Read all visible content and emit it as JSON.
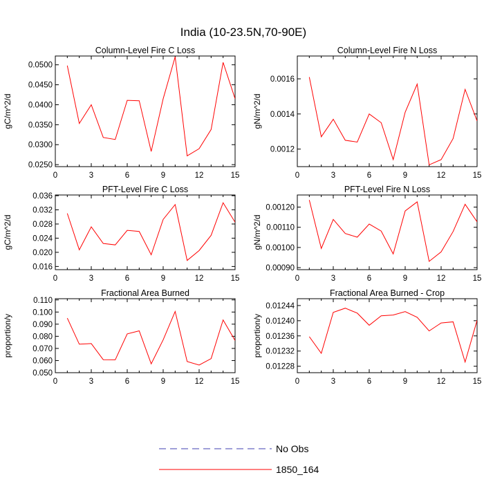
{
  "page": {
    "title": "India (10-23.5N,70-90E)"
  },
  "chart_data": [
    {
      "type": "line",
      "title": "Column-Level Fire C Loss",
      "xlabel": "",
      "ylabel": "gC/m^2/d",
      "xlim": [
        0,
        15
      ],
      "ylim": [
        0.0245,
        0.0522
      ],
      "xticks": [
        "0",
        "3",
        "6",
        "9",
        "12",
        "15"
      ],
      "yticks": [
        "0.0250",
        "0.0300",
        "0.0350",
        "0.0400",
        "0.0450",
        "0.0500"
      ],
      "x": [
        1,
        2,
        3,
        4,
        5,
        6,
        7,
        8,
        9,
        10,
        11,
        12,
        13,
        14,
        15
      ],
      "series": [
        {
          "name": "1850_164",
          "color": "#ff0000",
          "values": [
            0.0498,
            0.0353,
            0.04,
            0.0318,
            0.0313,
            0.0411,
            0.041,
            0.0283,
            0.0415,
            0.052,
            0.0272,
            0.029,
            0.0338,
            0.0506,
            0.0415
          ]
        }
      ]
    },
    {
      "type": "line",
      "title": "Column-Level Fire N Loss",
      "xlabel": "",
      "ylabel": "gN/m^2/d",
      "xlim": [
        0,
        15
      ],
      "ylim": [
        0.0011,
        0.00173
      ],
      "xticks": [
        "0",
        "3",
        "6",
        "9",
        "12",
        "15"
      ],
      "yticks": [
        "0.0012",
        "0.0014",
        "0.0016"
      ],
      "x": [
        1,
        2,
        3,
        4,
        5,
        6,
        7,
        8,
        9,
        10,
        11,
        12,
        13,
        14,
        15
      ],
      "series": [
        {
          "name": "1850_164",
          "color": "#ff0000",
          "values": [
            0.00161,
            0.00127,
            0.00137,
            0.00125,
            0.00124,
            0.0014,
            0.00135,
            0.00114,
            0.00141,
            0.00157,
            0.00111,
            0.00114,
            0.00126,
            0.00154,
            0.00136
          ]
        }
      ]
    },
    {
      "type": "line",
      "title": "PFT-Level Fire C Loss",
      "xlabel": "",
      "ylabel": "gC/m^2/d",
      "xlim": [
        0,
        15
      ],
      "ylim": [
        0.0151,
        0.0362
      ],
      "xticks": [
        "0",
        "3",
        "6",
        "9",
        "12",
        "15"
      ],
      "yticks": [
        "0.016",
        "0.020",
        "0.024",
        "0.028",
        "0.032",
        "0.036"
      ],
      "x": [
        1,
        2,
        3,
        4,
        5,
        6,
        7,
        8,
        9,
        10,
        11,
        12,
        13,
        14,
        15
      ],
      "series": [
        {
          "name": "1850_164",
          "color": "#ff0000",
          "values": [
            0.031,
            0.0207,
            0.0272,
            0.0225,
            0.0221,
            0.0262,
            0.0259,
            0.0193,
            0.0293,
            0.0335,
            0.0177,
            0.0205,
            0.0248,
            0.034,
            0.0285
          ]
        }
      ]
    },
    {
      "type": "line",
      "title": "PFT-Level Fire N Loss",
      "xlabel": "",
      "ylabel": "gN/m^2/d",
      "xlim": [
        0,
        15
      ],
      "ylim": [
        0.00089,
        0.00126
      ],
      "xticks": [
        "0",
        "3",
        "6",
        "9",
        "12",
        "15"
      ],
      "yticks": [
        "0.00090",
        "0.00100",
        "0.00110",
        "0.00120"
      ],
      "x": [
        1,
        2,
        3,
        4,
        5,
        6,
        7,
        8,
        9,
        10,
        11,
        12,
        13,
        14,
        15
      ],
      "series": [
        {
          "name": "1850_164",
          "color": "#ff0000",
          "values": [
            0.001235,
            0.000995,
            0.001139,
            0.001069,
            0.001051,
            0.001116,
            0.001081,
            0.000968,
            0.001181,
            0.001226,
            0.000931,
            0.000978,
            0.001079,
            0.001214,
            0.001127
          ]
        }
      ]
    },
    {
      "type": "line",
      "title": "Fractional Area Burned",
      "xlabel": "",
      "ylabel": "proportion/y",
      "xlim": [
        0,
        15
      ],
      "ylim": [
        0.05,
        0.111
      ],
      "xticks": [
        "0",
        "3",
        "6",
        "9",
        "12",
        "15"
      ],
      "yticks": [
        "0.050",
        "0.060",
        "0.070",
        "0.080",
        "0.090",
        "0.100",
        "0.110"
      ],
      "x": [
        1,
        2,
        3,
        4,
        5,
        6,
        7,
        8,
        9,
        10,
        11,
        12,
        13,
        14,
        15
      ],
      "series": [
        {
          "name": "1850_164",
          "color": "#ff0000",
          "values": [
            0.095,
            0.0735,
            0.074,
            0.0607,
            0.0606,
            0.082,
            0.0845,
            0.0573,
            0.0771,
            0.1005,
            0.0592,
            0.0563,
            0.0616,
            0.0935,
            0.0765
          ]
        }
      ]
    },
    {
      "type": "line",
      "title": "Fractional Area Burned - Crop",
      "xlabel": "",
      "ylabel": "proportion/y",
      "xlim": [
        0,
        15
      ],
      "ylim": [
        0.012263,
        0.012458
      ],
      "xticks": [
        "0",
        "3",
        "6",
        "9",
        "12",
        "15"
      ],
      "yticks": [
        "0.01228",
        "0.01232",
        "0.01236",
        "0.01240",
        "0.01244"
      ],
      "x": [
        1,
        2,
        3,
        4,
        5,
        6,
        7,
        8,
        9,
        10,
        11,
        12,
        13,
        14,
        15
      ],
      "series": [
        {
          "name": "1850_164",
          "color": "#ff0000",
          "values": [
            0.012358,
            0.012314,
            0.012422,
            0.012433,
            0.01242,
            0.012388,
            0.012413,
            0.012415,
            0.012424,
            0.012409,
            0.012373,
            0.012394,
            0.012397,
            0.012291,
            0.012401
          ]
        }
      ]
    }
  ],
  "legend": {
    "items": [
      {
        "label": "No Obs",
        "color": "#3f3fb0",
        "dash": "dashed"
      },
      {
        "label": "1850_164",
        "color": "#ff0000",
        "dash": "solid"
      }
    ]
  }
}
